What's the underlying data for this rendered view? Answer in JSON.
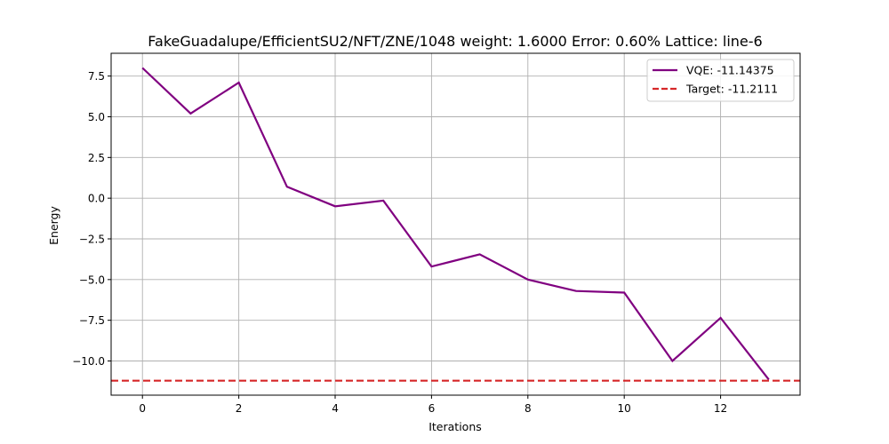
{
  "chart_data": {
    "type": "line",
    "title": "FakeGuadalupe/EfficientSU2/NFT/ZNE/1048 weight: 1.6000 Error: 0.60% Lattice: line-6",
    "xlabel": "Iterations",
    "ylabel": "Energy",
    "xlim": [
      -0.65,
      13.65
    ],
    "ylim": [
      -12.1,
      8.9
    ],
    "xticks": [
      0,
      2,
      4,
      6,
      8,
      10,
      12
    ],
    "xtick_labels": [
      "0",
      "2",
      "4",
      "6",
      "8",
      "10",
      "12"
    ],
    "yticks": [
      7.5,
      5.0,
      2.5,
      0.0,
      -2.5,
      -5.0,
      -7.5,
      -10.0
    ],
    "ytick_labels": [
      "7.5",
      "5.0",
      "2.5",
      "0.0",
      "−2.5",
      "−5.0",
      "−7.5",
      "−10.0"
    ],
    "grid": true,
    "legend_position": "top-right",
    "series": [
      {
        "name": "VQE: -11.14375",
        "style": "solid",
        "color": "#800080",
        "x": [
          0,
          1,
          2,
          3,
          4,
          5,
          6,
          7,
          8,
          9,
          10,
          11,
          12,
          13
        ],
        "y": [
          8.0,
          5.2,
          7.1,
          0.7,
          -0.5,
          -0.15,
          -4.2,
          -3.45,
          -5.0,
          -5.7,
          -5.8,
          -10.0,
          -7.35,
          -11.14375
        ]
      },
      {
        "name": "Target: -11.2111",
        "style": "dashed",
        "color": "#d62728",
        "y_constant": -11.2111
      }
    ]
  }
}
